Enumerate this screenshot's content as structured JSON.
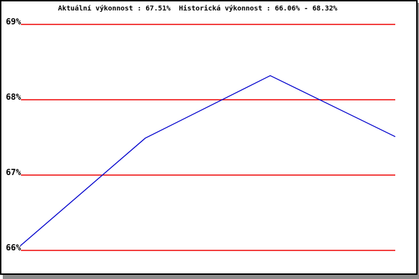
{
  "page": {
    "background": "#ffffff",
    "frame_border_color": "#000000",
    "frame_shadow_color": "#8c8c8c"
  },
  "chart_data": {
    "type": "line",
    "title": "Aktuální výkonnost : 67.51%  Historická výkonnost : 66.06% - 68.32%",
    "current_performance": "67.51%",
    "historical_range": "66.06% - 68.32%",
    "x": [
      0,
      1,
      2,
      3
    ],
    "values": [
      66.06,
      67.49,
      68.32,
      67.51
    ],
    "yticks": [
      69,
      68,
      67,
      66
    ],
    "ytick_labels": [
      "69%",
      "68%",
      "67%",
      "66%"
    ],
    "ylim": [
      65.7,
      69.3
    ],
    "xlabel": "",
    "ylabel": "",
    "grid": "horizontal lines only",
    "legend": "none",
    "line_color": "#0000cc",
    "grid_color": "#ee0000",
    "text_color": "#000000"
  }
}
